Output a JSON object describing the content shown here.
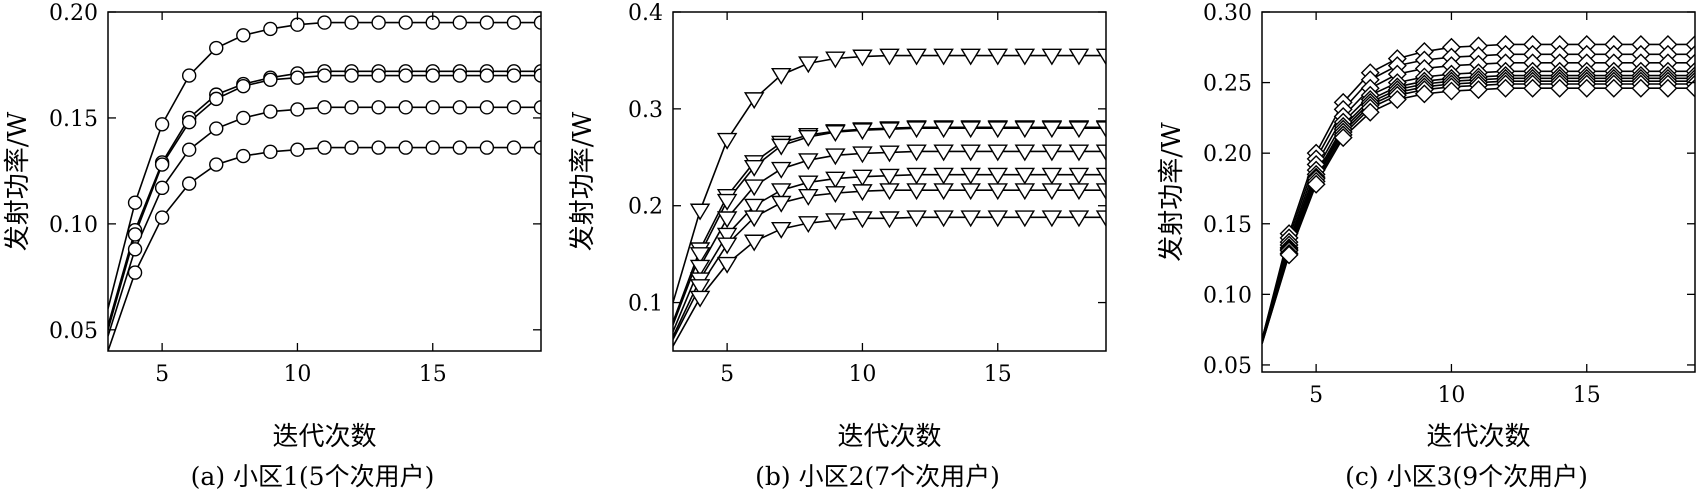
{
  "chart_data": [
    {
      "type": "line",
      "caption": "(a) 小区1(5个次用户)",
      "xlabel": "迭代次数",
      "ylabel": "发射功率/W",
      "xlim": [
        3,
        19
      ],
      "ylim": [
        0.04,
        0.2
      ],
      "xticks": [
        5,
        10,
        15
      ],
      "xtick_labels": [
        "5",
        "10",
        "15"
      ],
      "yticks": [
        0.05,
        0.1,
        0.15,
        0.2
      ],
      "ytick_labels": [
        "0.05",
        "0.10",
        "0.15",
        "0.20"
      ],
      "marker": "circle",
      "x": [
        3,
        4,
        5,
        6,
        7,
        8,
        9,
        10,
        11,
        12,
        13,
        14,
        15,
        16,
        17,
        18,
        19
      ],
      "series": [
        {
          "values": [
            0.06,
            0.11,
            0.147,
            0.17,
            0.183,
            0.189,
            0.192,
            0.194,
            0.195,
            0.195,
            0.195,
            0.195,
            0.195,
            0.195,
            0.195,
            0.195,
            0.195
          ]
        },
        {
          "values": [
            0.052,
            0.097,
            0.129,
            0.15,
            0.161,
            0.166,
            0.169,
            0.171,
            0.172,
            0.172,
            0.172,
            0.172,
            0.172,
            0.172,
            0.172,
            0.172,
            0.172
          ]
        },
        {
          "values": [
            0.05,
            0.095,
            0.128,
            0.148,
            0.159,
            0.165,
            0.168,
            0.169,
            0.17,
            0.17,
            0.17,
            0.17,
            0.17,
            0.17,
            0.17,
            0.17,
            0.17
          ]
        },
        {
          "values": [
            0.047,
            0.088,
            0.117,
            0.135,
            0.145,
            0.15,
            0.153,
            0.154,
            0.155,
            0.155,
            0.155,
            0.155,
            0.155,
            0.155,
            0.155,
            0.155,
            0.155
          ]
        },
        {
          "values": [
            0.04,
            0.077,
            0.103,
            0.119,
            0.128,
            0.132,
            0.134,
            0.135,
            0.136,
            0.136,
            0.136,
            0.136,
            0.136,
            0.136,
            0.136,
            0.136,
            0.136
          ]
        }
      ]
    },
    {
      "type": "line",
      "caption": "(b) 小区2(7个次用户)",
      "xlabel": "迭代次数",
      "ylabel": "发射功率/W",
      "xlim": [
        3,
        19
      ],
      "ylim": [
        0.05,
        0.4
      ],
      "xticks": [
        5,
        10,
        15
      ],
      "xtick_labels": [
        "5",
        "10",
        "15"
      ],
      "yticks": [
        0.1,
        0.2,
        0.3,
        0.4
      ],
      "ytick_labels": [
        "0.1",
        "0.2",
        "0.3",
        "0.4"
      ],
      "marker": "triangle-down",
      "x": [
        3,
        4,
        5,
        6,
        7,
        8,
        9,
        10,
        11,
        12,
        13,
        14,
        15,
        16,
        17,
        18,
        19
      ],
      "series": [
        {
          "values": [
            0.1,
            0.195,
            0.268,
            0.31,
            0.335,
            0.347,
            0.352,
            0.354,
            0.355,
            0.355,
            0.355,
            0.355,
            0.355,
            0.355,
            0.355,
            0.355,
            0.355
          ]
        },
        {
          "values": [
            0.08,
            0.155,
            0.21,
            0.245,
            0.265,
            0.273,
            0.277,
            0.279,
            0.28,
            0.281,
            0.281,
            0.281,
            0.281,
            0.281,
            0.281,
            0.281,
            0.281
          ]
        },
        {
          "values": [
            0.077,
            0.15,
            0.205,
            0.24,
            0.262,
            0.271,
            0.276,
            0.278,
            0.279,
            0.28,
            0.28,
            0.28,
            0.28,
            0.28,
            0.28,
            0.28,
            0.28
          ]
        },
        {
          "values": [
            0.07,
            0.137,
            0.187,
            0.22,
            0.238,
            0.247,
            0.252,
            0.254,
            0.255,
            0.256,
            0.256,
            0.256,
            0.256,
            0.256,
            0.256,
            0.256,
            0.256
          ]
        },
        {
          "values": [
            0.065,
            0.124,
            0.17,
            0.2,
            0.216,
            0.224,
            0.228,
            0.23,
            0.231,
            0.232,
            0.232,
            0.232,
            0.232,
            0.232,
            0.232,
            0.232,
            0.232
          ]
        },
        {
          "values": [
            0.062,
            0.117,
            0.16,
            0.188,
            0.203,
            0.21,
            0.213,
            0.215,
            0.216,
            0.216,
            0.216,
            0.216,
            0.216,
            0.216,
            0.216,
            0.216,
            0.216
          ]
        },
        {
          "values": [
            0.055,
            0.105,
            0.14,
            0.163,
            0.176,
            0.182,
            0.185,
            0.187,
            0.187,
            0.188,
            0.188,
            0.188,
            0.188,
            0.188,
            0.188,
            0.188,
            0.188
          ]
        }
      ]
    },
    {
      "type": "line",
      "caption": "(c) 小区3(9个次用户)",
      "xlabel": "迭代次数",
      "ylabel": "发射功率/W",
      "xlim": [
        3,
        19
      ],
      "ylim": [
        0.045,
        0.3
      ],
      "xticks": [
        5,
        10,
        15
      ],
      "xtick_labels": [
        "5",
        "10",
        "15"
      ],
      "yticks": [
        0.05,
        0.1,
        0.15,
        0.2,
        0.25,
        0.3
      ],
      "ytick_labels": [
        "0.05",
        "0.10",
        "0.15",
        "0.20",
        "0.25",
        "0.30"
      ],
      "marker": "diamond",
      "x": [
        3,
        4,
        5,
        6,
        7,
        8,
        9,
        10,
        11,
        12,
        13,
        14,
        15,
        16,
        17,
        18,
        19
      ],
      "series": [
        {
          "values": [
            0.068,
            0.143,
            0.2,
            0.236,
            0.257,
            0.267,
            0.272,
            0.275,
            0.276,
            0.277,
            0.277,
            0.277,
            0.277,
            0.277,
            0.277,
            0.277,
            0.277
          ]
        },
        {
          "values": [
            0.068,
            0.14,
            0.196,
            0.231,
            0.252,
            0.262,
            0.266,
            0.268,
            0.269,
            0.27,
            0.27,
            0.27,
            0.27,
            0.27,
            0.27,
            0.27,
            0.27
          ]
        },
        {
          "values": [
            0.067,
            0.137,
            0.192,
            0.226,
            0.246,
            0.256,
            0.26,
            0.262,
            0.263,
            0.264,
            0.264,
            0.264,
            0.264,
            0.264,
            0.264,
            0.264,
            0.264
          ]
        },
        {
          "values": [
            0.067,
            0.135,
            0.188,
            0.222,
            0.241,
            0.25,
            0.254,
            0.256,
            0.257,
            0.258,
            0.258,
            0.258,
            0.258,
            0.258,
            0.258,
            0.258,
            0.258
          ]
        },
        {
          "values": [
            0.066,
            0.133,
            0.185,
            0.219,
            0.238,
            0.247,
            0.251,
            0.253,
            0.254,
            0.255,
            0.255,
            0.255,
            0.255,
            0.255,
            0.255,
            0.255,
            0.255
          ]
        },
        {
          "values": [
            0.066,
            0.132,
            0.183,
            0.217,
            0.236,
            0.245,
            0.249,
            0.251,
            0.252,
            0.253,
            0.253,
            0.253,
            0.253,
            0.253,
            0.253,
            0.253,
            0.253
          ]
        },
        {
          "values": [
            0.066,
            0.131,
            0.182,
            0.215,
            0.234,
            0.243,
            0.247,
            0.249,
            0.25,
            0.251,
            0.251,
            0.251,
            0.251,
            0.251,
            0.251,
            0.251,
            0.251
          ]
        },
        {
          "values": [
            0.065,
            0.129,
            0.18,
            0.213,
            0.232,
            0.241,
            0.245,
            0.247,
            0.248,
            0.249,
            0.249,
            0.249,
            0.249,
            0.249,
            0.249,
            0.249,
            0.249
          ]
        },
        {
          "values": [
            0.065,
            0.128,
            0.178,
            0.211,
            0.229,
            0.238,
            0.242,
            0.244,
            0.245,
            0.246,
            0.246,
            0.246,
            0.246,
            0.246,
            0.246,
            0.246,
            0.246
          ]
        }
      ]
    }
  ]
}
